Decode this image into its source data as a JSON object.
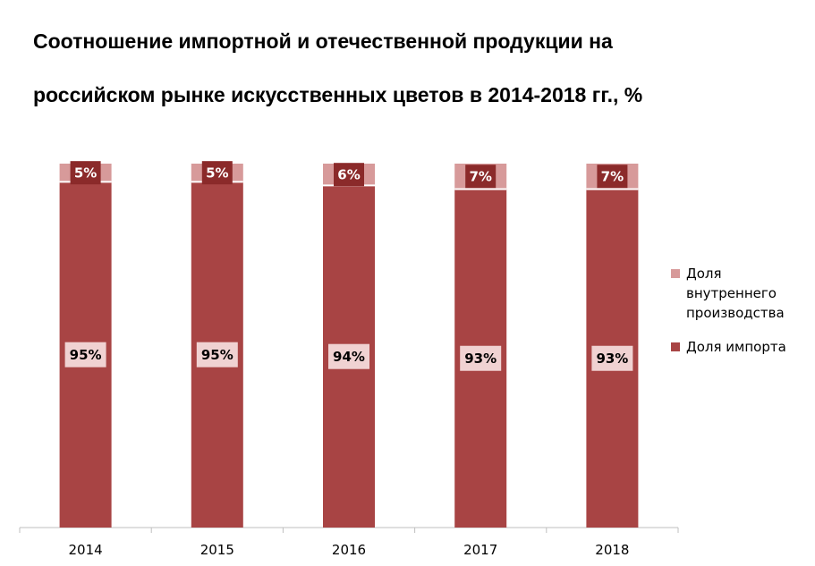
{
  "title_line1": "Соотношение импортной и отечественной продукции на",
  "title_line2": "российском рынке искусственных цветов в 2014-2018 гг., %",
  "chart_data": {
    "type": "bar",
    "stacked": true,
    "categories": [
      "2014",
      "2015",
      "2016",
      "2017",
      "2018"
    ],
    "series": [
      {
        "name": "Доля импорта",
        "values": [
          95,
          95,
          94,
          93,
          93
        ],
        "labels": [
          "95%",
          "95%",
          "94%",
          "93%",
          "93%"
        ],
        "color": "#A84444"
      },
      {
        "name": "Доля внутреннего производства",
        "values": [
          5,
          5,
          6,
          7,
          7
        ],
        "labels": [
          "5%",
          "5%",
          "6%",
          "7%",
          "7%"
        ],
        "color": "#D79A9A"
      }
    ],
    "ylim": [
      0,
      100
    ],
    "grid": false,
    "legend": "right",
    "colors": {
      "import_label_bg": "#F0D2D2",
      "domestic_label_bg": "#8B2A2A"
    }
  },
  "legend": {
    "domestic": "Доля внутреннего производства",
    "import": "Доля импорта"
  }
}
